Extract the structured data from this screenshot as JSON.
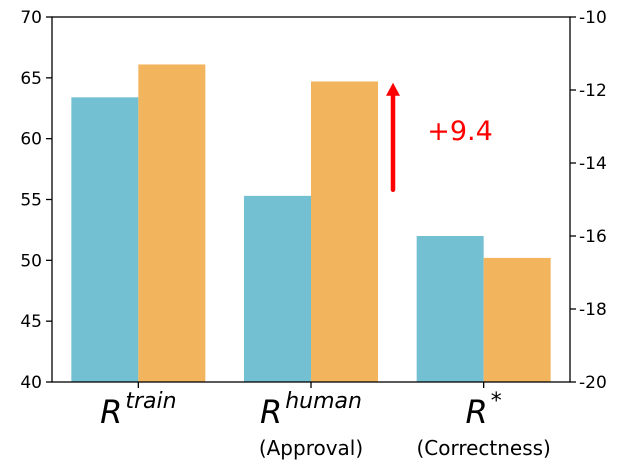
{
  "chart_data": {
    "type": "bar",
    "categories": [
      {
        "main": "R",
        "sup": "train",
        "sub": ""
      },
      {
        "main": "R",
        "sup": "human",
        "sub": "(Approval)"
      },
      {
        "main": "R",
        "sup": "*",
        "sub": "(Correctness)"
      }
    ],
    "series": [
      {
        "color": "#73c0d2",
        "values": [
          63.4,
          55.3,
          52.0
        ]
      },
      {
        "color": "#f2b45c",
        "values": [
          66.1,
          64.7,
          50.2
        ]
      }
    ],
    "y_left": {
      "range": [
        40,
        70
      ],
      "ticks": [
        "40",
        "45",
        "50",
        "55",
        "60",
        "65",
        "70"
      ]
    },
    "y_right": {
      "range": [
        -20,
        -10
      ],
      "ticks": [
        "-20",
        "-18",
        "-16",
        "-14",
        "-12",
        "-10"
      ]
    },
    "grid": false,
    "annotation": {
      "text": "+9.4",
      "color": "#ff0000",
      "arrow_from": 55.8,
      "arrow_to": 64.6
    }
  }
}
